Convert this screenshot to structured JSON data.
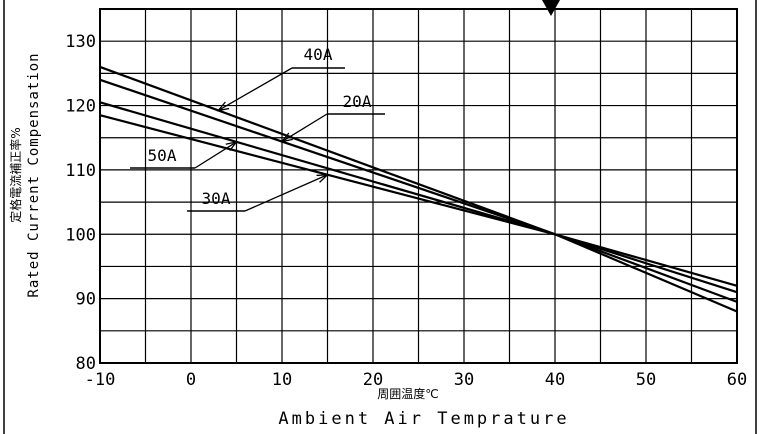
{
  "chart_data": {
    "type": "line",
    "xlabel_jp": "周囲温度℃",
    "xlabel": "Ambient Air Temprature",
    "ylabel_jp": "定格電流補正率%",
    "ylabel": "Rated Current Compensation",
    "xlim": [
      -10,
      60
    ],
    "ylim": [
      80,
      135
    ],
    "x_ticks": [
      "-10",
      "0",
      "10",
      "20",
      "30",
      "40",
      "50",
      "60"
    ],
    "y_ticks": [
      "80",
      "90",
      "100",
      "110",
      "120",
      "130"
    ],
    "grid": true,
    "marker_at_x": 40,
    "series": [
      {
        "name": "40A",
        "x": [
          -10,
          40,
          60
        ],
        "y": [
          126,
          100,
          88
        ]
      },
      {
        "name": "20A",
        "x": [
          -10,
          40,
          60
        ],
        "y": [
          124,
          100,
          89.5
        ]
      },
      {
        "name": "50A",
        "x": [
          -10,
          40,
          60
        ],
        "y": [
          120.5,
          100,
          91
        ]
      },
      {
        "name": "30A",
        "x": [
          -10,
          40,
          60
        ],
        "y": [
          118.5,
          100,
          92
        ]
      }
    ]
  }
}
